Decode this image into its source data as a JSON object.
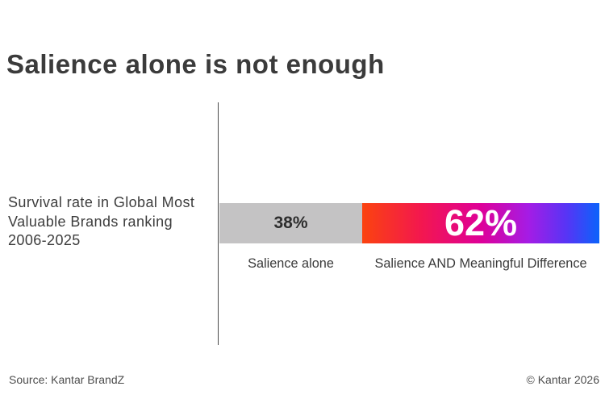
{
  "title": "Salience alone is not enough",
  "chart_data": {
    "type": "bar",
    "orientation": "horizontal-stacked",
    "row_label": "Survival rate in Global Most Valuable Brands ranking 2006-2025",
    "row_label_lines": [
      "Survival rate in Global Most",
      "Valuable Brands ranking",
      "2006-2025"
    ],
    "categories": [
      "Salience alone",
      "Salience AND Meaningful Difference"
    ],
    "values": [
      38,
      62
    ],
    "segments": [
      {
        "label": "Salience alone",
        "value": 38,
        "value_label": "38%",
        "fill": "#c4c3c4",
        "text_color": "#2e2e2e"
      },
      {
        "label": "Salience AND Meaningful Difference",
        "value": 62,
        "value_label": "62%",
        "gradient": [
          "#fb430f",
          "#f3174f",
          "#de0098",
          "#a51ce5",
          "#5834f5",
          "#0b63fb"
        ],
        "text_color": "#ffffff"
      }
    ],
    "title": "Salience alone is not enough",
    "xlabel": "",
    "ylabel": "",
    "legend": false,
    "grid": false,
    "axis_line_color": "#4a4a4a"
  },
  "footer": {
    "source": "Source: Kantar BrandZ",
    "copyright": "© Kantar 2026"
  }
}
